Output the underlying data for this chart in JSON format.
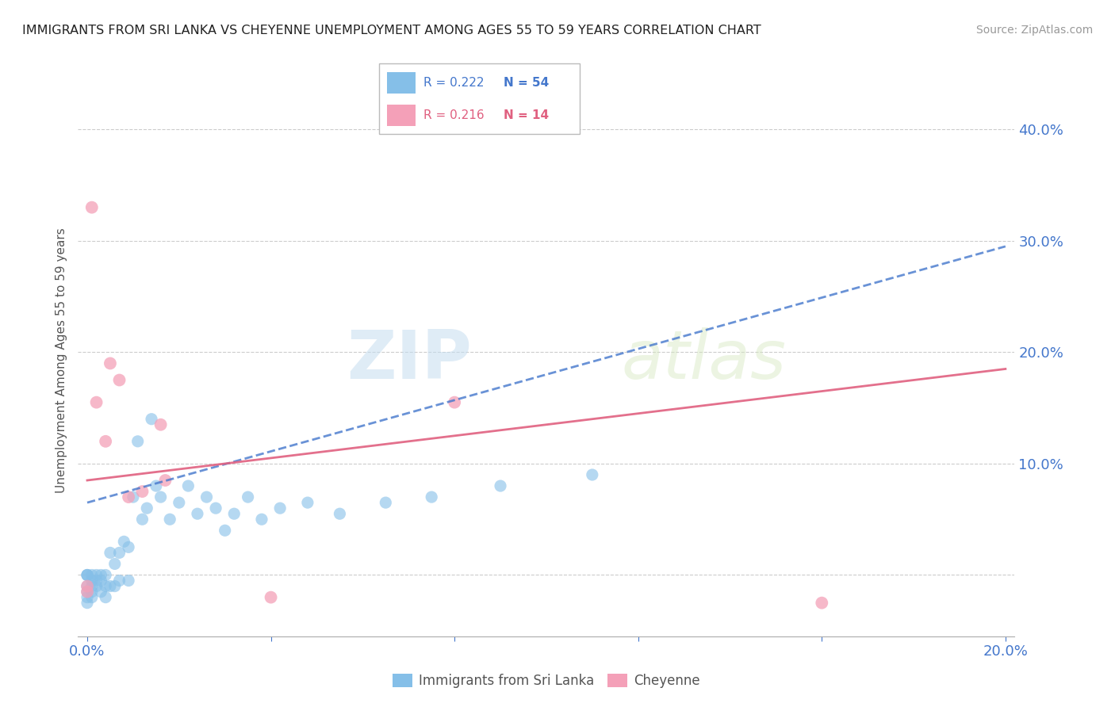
{
  "title": "IMMIGRANTS FROM SRI LANKA VS CHEYENNE UNEMPLOYMENT AMONG AGES 55 TO 59 YEARS CORRELATION CHART",
  "source": "Source: ZipAtlas.com",
  "ylabel": "Unemployment Among Ages 55 to 59 years",
  "xlim": [
    -0.002,
    0.202
  ],
  "ylim": [
    -0.055,
    0.44
  ],
  "xticks": [
    0.0,
    0.04,
    0.08,
    0.12,
    0.16,
    0.2
  ],
  "xtick_labels": [
    "0.0%",
    "",
    "",
    "",
    "",
    "20.0%"
  ],
  "yticks": [
    0.0,
    0.1,
    0.2,
    0.3,
    0.4
  ],
  "ytick_labels": [
    "",
    "10.0%",
    "20.0%",
    "30.0%",
    "40.0%"
  ],
  "blue_color": "#85bfe8",
  "pink_color": "#f4a0b8",
  "trend_blue_color": "#4477cc",
  "trend_pink_color": "#e06080",
  "watermark_zip": "ZIP",
  "watermark_atlas": "atlas",
  "legend_r_blue": "R = 0.222",
  "legend_n_blue": "N = 54",
  "legend_r_pink": "R = 0.216",
  "legend_n_pink": "N = 14",
  "blue_points_x": [
    0.0,
    0.0,
    0.0,
    0.0,
    0.0,
    0.0,
    0.0,
    0.001,
    0.001,
    0.001,
    0.001,
    0.001,
    0.002,
    0.002,
    0.002,
    0.003,
    0.003,
    0.003,
    0.004,
    0.004,
    0.004,
    0.005,
    0.005,
    0.006,
    0.006,
    0.007,
    0.007,
    0.008,
    0.009,
    0.009,
    0.01,
    0.011,
    0.012,
    0.013,
    0.014,
    0.015,
    0.016,
    0.018,
    0.02,
    0.022,
    0.024,
    0.026,
    0.028,
    0.03,
    0.032,
    0.035,
    0.038,
    0.042,
    0.048,
    0.055,
    0.065,
    0.075,
    0.09,
    0.11
  ],
  "blue_points_y": [
    0.0,
    0.0,
    0.0,
    -0.01,
    -0.015,
    -0.02,
    -0.025,
    0.0,
    -0.005,
    -0.01,
    -0.015,
    -0.02,
    -0.005,
    0.0,
    -0.01,
    0.0,
    -0.005,
    -0.015,
    0.0,
    -0.01,
    -0.02,
    0.02,
    -0.01,
    0.01,
    -0.01,
    0.02,
    -0.005,
    0.03,
    0.025,
    -0.005,
    0.07,
    0.12,
    0.05,
    0.06,
    0.14,
    0.08,
    0.07,
    0.05,
    0.065,
    0.08,
    0.055,
    0.07,
    0.06,
    0.04,
    0.055,
    0.07,
    0.05,
    0.06,
    0.065,
    0.055,
    0.065,
    0.07,
    0.08,
    0.09
  ],
  "pink_points_x": [
    0.0,
    0.0,
    0.001,
    0.002,
    0.004,
    0.005,
    0.007,
    0.009,
    0.012,
    0.016,
    0.017,
    0.04,
    0.08,
    0.16
  ],
  "pink_points_y": [
    -0.01,
    -0.015,
    0.33,
    0.155,
    0.12,
    0.19,
    0.175,
    0.07,
    0.075,
    0.135,
    0.085,
    -0.02,
    0.155,
    -0.025
  ],
  "blue_trend_x": [
    0.0,
    0.2
  ],
  "blue_trend_y": [
    0.065,
    0.295
  ],
  "pink_trend_x": [
    0.0,
    0.2
  ],
  "pink_trend_y": [
    0.085,
    0.185
  ]
}
